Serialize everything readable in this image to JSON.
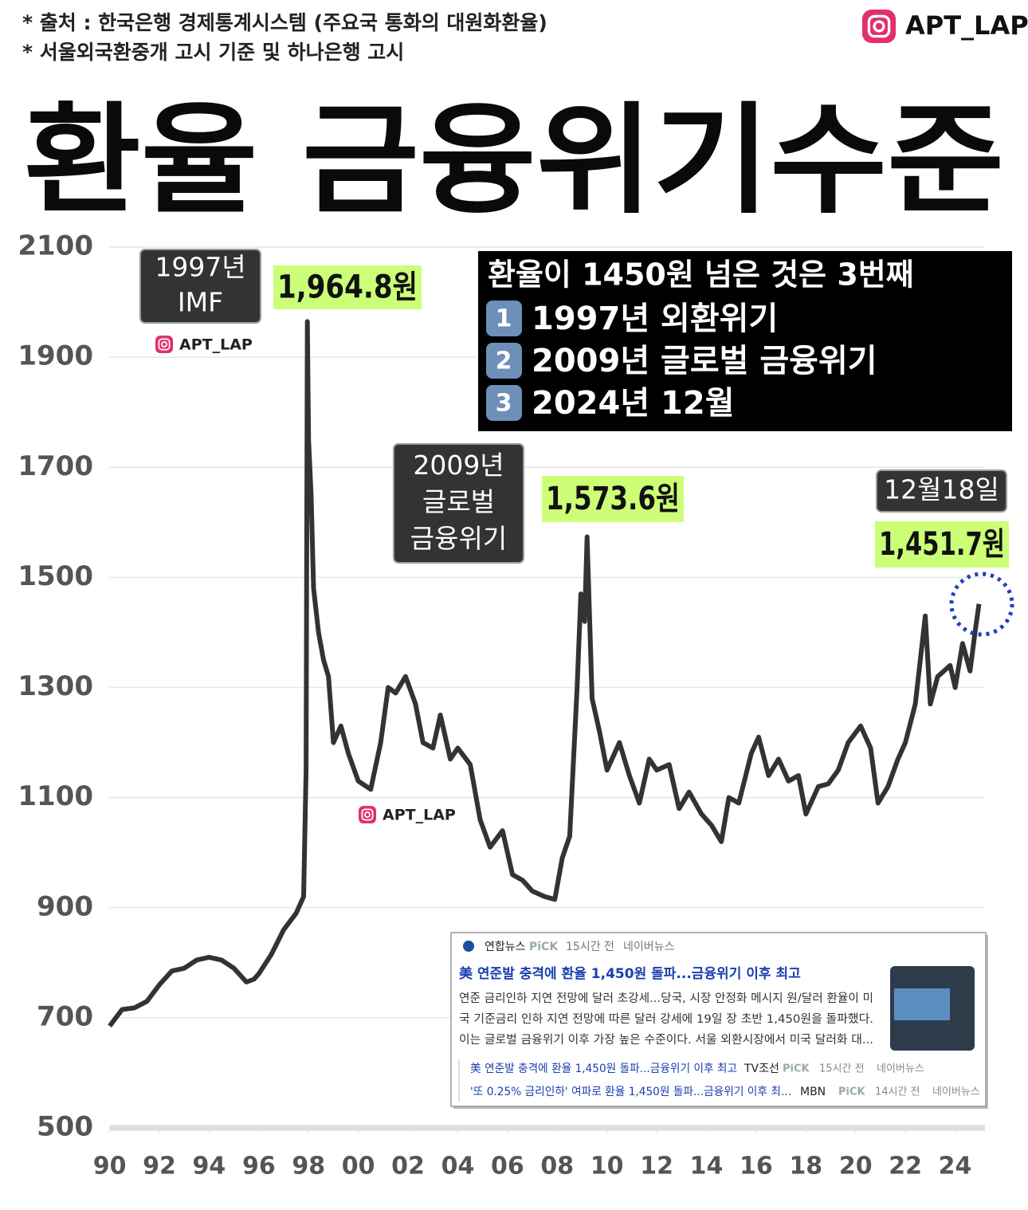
{
  "header": {
    "sources": [
      "* 출처 : 한국은행 경제통계시스템 (주요국 통화의 대원화환율)",
      "* 서울외국환중개 고시 기준 및 하나은행 고시"
    ],
    "brand": "APT_LAP",
    "title": "환율 금융위기수준"
  },
  "chart_data": {
    "type": "line",
    "color": "#333333",
    "x": [
      1990.0,
      1990.5,
      1991.0,
      1991.5,
      1992.0,
      1992.5,
      1993.0,
      1993.5,
      1994.0,
      1994.5,
      1995.0,
      1995.5,
      1995.8,
      1996.0,
      1996.5,
      1997.0,
      1997.5,
      1997.8,
      1997.9,
      1997.95,
      1998.0,
      1998.1,
      1998.2,
      1998.4,
      1998.6,
      1998.8,
      1999.0,
      1999.3,
      1999.6,
      2000.0,
      2000.5,
      2000.9,
      2001.2,
      2001.5,
      2001.9,
      2002.3,
      2002.6,
      2003.0,
      2003.3,
      2003.7,
      2004.0,
      2004.5,
      2004.9,
      2005.3,
      2005.8,
      2006.2,
      2006.6,
      2007.0,
      2007.5,
      2007.9,
      2008.2,
      2008.5,
      2008.8,
      2008.95,
      2009.1,
      2009.2,
      2009.4,
      2009.7,
      2010.0,
      2010.5,
      2010.9,
      2011.3,
      2011.7,
      2012.0,
      2012.5,
      2012.9,
      2013.3,
      2013.8,
      2014.2,
      2014.6,
      2014.9,
      2015.3,
      2015.8,
      2016.1,
      2016.5,
      2016.9,
      2017.3,
      2017.7,
      2018.0,
      2018.5,
      2018.9,
      2019.3,
      2019.7,
      2020.2,
      2020.6,
      2020.9,
      2021.3,
      2021.7,
      2022.0,
      2022.4,
      2022.8,
      2023.0,
      2023.3,
      2023.8,
      2024.0,
      2024.3,
      2024.6,
      2024.8,
      2024.96
    ],
    "values": [
      685,
      715,
      718,
      730,
      760,
      785,
      790,
      805,
      810,
      805,
      790,
      765,
      770,
      780,
      815,
      860,
      890,
      920,
      1150,
      1964.8,
      1750,
      1650,
      1480,
      1400,
      1350,
      1320,
      1200,
      1230,
      1180,
      1130,
      1115,
      1200,
      1300,
      1290,
      1320,
      1270,
      1200,
      1190,
      1250,
      1170,
      1190,
      1160,
      1060,
      1010,
      1040,
      960,
      950,
      930,
      920,
      915,
      990,
      1030,
      1300,
      1470,
      1420,
      1573.6,
      1280,
      1220,
      1150,
      1200,
      1140,
      1090,
      1170,
      1150,
      1160,
      1080,
      1110,
      1070,
      1050,
      1020,
      1100,
      1090,
      1180,
      1210,
      1140,
      1170,
      1130,
      1140,
      1070,
      1120,
      1125,
      1150,
      1200,
      1230,
      1190,
      1090,
      1120,
      1170,
      1200,
      1270,
      1430,
      1270,
      1320,
      1340,
      1300,
      1380,
      1330,
      1400,
      1451.7
    ],
    "xlim": [
      1989.5,
      2025.2
    ],
    "xticks": [
      {
        "value": 1990,
        "label": "90"
      },
      {
        "value": 1992,
        "label": "92"
      },
      {
        "value": 1994,
        "label": "94"
      },
      {
        "value": 1996,
        "label": "96"
      },
      {
        "value": 1998,
        "label": "98"
      },
      {
        "value": 2000,
        "label": "00"
      },
      {
        "value": 2002,
        "label": "02"
      },
      {
        "value": 2004,
        "label": "04"
      },
      {
        "value": 2006,
        "label": "06"
      },
      {
        "value": 2008,
        "label": "08"
      },
      {
        "value": 2010,
        "label": "10"
      },
      {
        "value": 2012,
        "label": "12"
      },
      {
        "value": 2014,
        "label": "14"
      },
      {
        "value": 2016,
        "label": "16"
      },
      {
        "value": 2018,
        "label": "18"
      },
      {
        "value": 2020,
        "label": "20"
      },
      {
        "value": 2022,
        "label": "22"
      },
      {
        "value": 2024,
        "label": "24"
      }
    ],
    "ylim": [
      500,
      2100
    ],
    "yticks": [
      500,
      700,
      900,
      1100,
      1300,
      1500,
      1700,
      1900,
      2100
    ],
    "grid": true,
    "annotations": [
      {
        "text": [
          "1997년",
          "IMF"
        ]
      },
      {
        "text": [
          "1,964.8원"
        ]
      },
      {
        "text": [
          "2009년",
          "글로벌",
          "금융위기"
        ]
      },
      {
        "text": [
          "1,573.6원"
        ]
      },
      {
        "text": [
          "12월18일"
        ]
      },
      {
        "text": [
          "1,451.7원"
        ]
      }
    ]
  },
  "info_box": {
    "title": "환율이 1450원 넘은 것은 3번째",
    "items": [
      {
        "number": "1",
        "text": "1997년 외환위기"
      },
      {
        "number": "2",
        "text": "2009년 글로벌 금융위기"
      },
      {
        "number": "3",
        "text": "2024년 12월"
      }
    ]
  },
  "news": {
    "source": "연합뉴스",
    "badge": "PiCK",
    "time": "15시간 전",
    "platform": "네이버뉴스",
    "headline": "美 연준발 충격에 환율 1,450원 돌파...금융위기 이후 최고",
    "snippet": [
      "연준 금리인하 지연 전망에 달러 초강세...당국, 시장 안정화 메시지 원/달러 환율이 미",
      "국 기준금리 인하 지연 전망에 따른 달러 강세에 19일 장 초반 1,450원을 돌파했다.",
      "이는 글로벌 금융위기 이후 가장 높은 수준이다. 서울 외환시장에서 미국 달러화 대..."
    ],
    "related": [
      {
        "title": "美 연준발 충격에 환율 1,450원 돌파...금융위기 이후 최고",
        "source": "TV조선",
        "badge": "PiCK",
        "time": "15시간 전",
        "platform": "네이버뉴스"
      },
      {
        "title": "'또 0.25% 금리인하' 여파로 환율 1,450원 돌파...금융위기 이후 최...",
        "source": "MBN",
        "badge": "PiCK",
        "time": "14시간 전",
        "platform": "네이버뉴스"
      }
    ]
  }
}
